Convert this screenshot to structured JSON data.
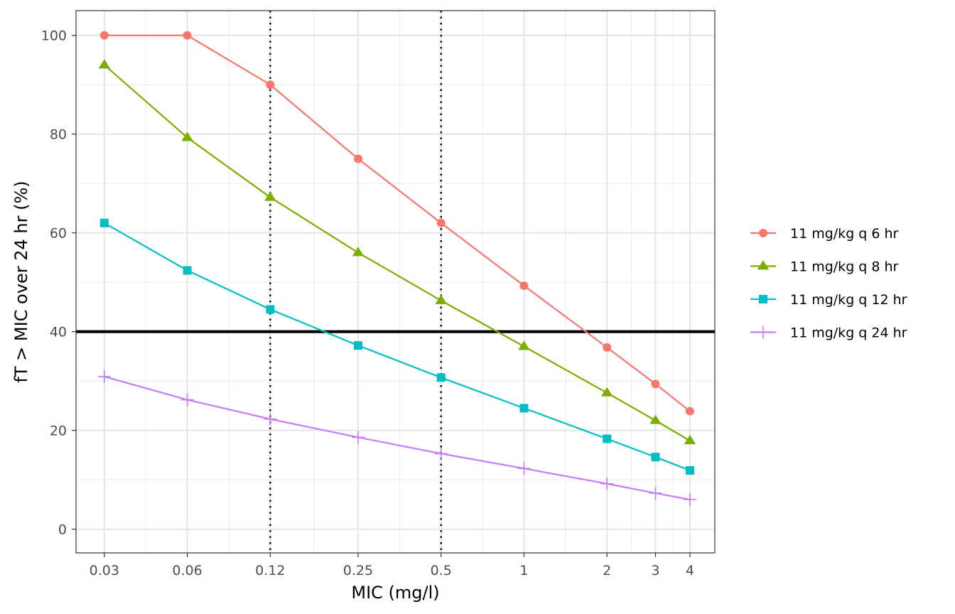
{
  "chart_data": {
    "type": "line",
    "xlabel": "MIC (mg/l)",
    "ylabel": "fT > MIC over 24 hr (%)",
    "x_scale": "log",
    "x": [
      0.03,
      0.06,
      0.12,
      0.25,
      0.5,
      1,
      2,
      3,
      4
    ],
    "x_tick_labels": [
      "0.03",
      "0.06",
      "0.12",
      "0.25",
      "0.5",
      "1",
      "2",
      "3",
      "4"
    ],
    "y_ticks": [
      0,
      20,
      40,
      60,
      80,
      100
    ],
    "y_tick_labels": [
      "0",
      "20",
      "40",
      "60",
      "80",
      "100"
    ],
    "ylim": [
      -4.8,
      105
    ],
    "xlim_log2": [
      -5.4,
      2.3
    ],
    "grid": true,
    "legend_position": "right",
    "series": [
      {
        "name": "11 mg/kg q 6 hr",
        "color": "#F8766D",
        "marker": "circle",
        "values": [
          100,
          100,
          90,
          75,
          62,
          49.3,
          36.8,
          29.4,
          23.9
        ]
      },
      {
        "name": "11 mg/kg q 8 hr",
        "color": "#7CAE00",
        "marker": "triangle",
        "values": [
          94,
          79.3,
          67.2,
          56,
          46.3,
          37,
          27.6,
          22,
          17.9
        ]
      },
      {
        "name": "11 mg/kg q 12 hr",
        "color": "#00BFC4",
        "marker": "square",
        "values": [
          62,
          52.4,
          44.5,
          37.2,
          30.7,
          24.5,
          18.3,
          14.6,
          11.9
        ]
      },
      {
        "name": "11 mg/kg q 24 hr",
        "color": "#C77CFF",
        "marker": "plus",
        "values": [
          30.9,
          26.2,
          22.3,
          18.6,
          15.3,
          12.3,
          9.2,
          7.3,
          6
        ]
      }
    ],
    "reference_lines": {
      "horizontal": [
        {
          "y": 40,
          "style": "solid",
          "color": "#000000"
        }
      ],
      "vertical": [
        {
          "x": 0.12,
          "style": "dotted",
          "color": "#000000"
        },
        {
          "x": 0.5,
          "style": "dotted",
          "color": "#000000"
        }
      ]
    }
  }
}
